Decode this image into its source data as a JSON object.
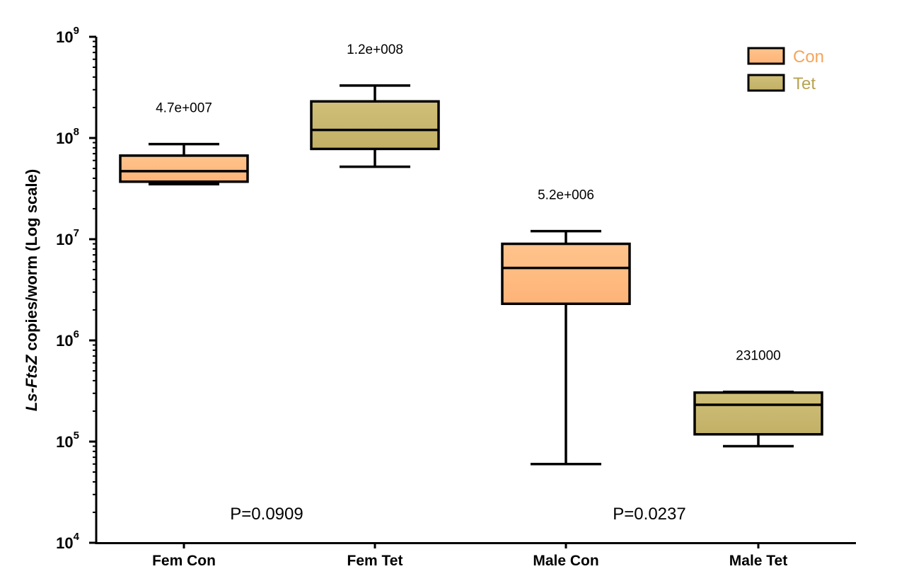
{
  "chart_data": {
    "type": "box",
    "ylabel_italic": "Ls-FtsZ",
    "ylabel_rest": " copies/worm (Log scale)",
    "yscale": "log",
    "ylim": [
      10000,
      1000000000
    ],
    "yticks": [
      {
        "value": 10000,
        "base": "10",
        "exp": "4"
      },
      {
        "value": 100000,
        "base": "10",
        "exp": "5"
      },
      {
        "value": 1000000,
        "base": "10",
        "exp": "6"
      },
      {
        "value": 10000000,
        "base": "10",
        "exp": "7"
      },
      {
        "value": 100000000,
        "base": "10",
        "exp": "8"
      },
      {
        "value": 1000000000,
        "base": "10",
        "exp": "9"
      }
    ],
    "categories": [
      "Fem Con",
      "Fem Tet",
      "Male Con",
      "Male Tet"
    ],
    "boxes": [
      {
        "category": "Fem Con",
        "group": "Con",
        "min": 35000000,
        "q1": 37000000,
        "median": 47000000,
        "q3": 67000000,
        "max": 87000000,
        "median_label": "4.7e+007"
      },
      {
        "category": "Fem Tet",
        "group": "Tet",
        "min": 52000000,
        "q1": 78000000,
        "median": 120000000,
        "q3": 230000000,
        "max": 330000000,
        "median_label": "1.2e+008"
      },
      {
        "category": "Male Con",
        "group": "Con",
        "min": 60000,
        "q1": 2300000,
        "median": 5200000,
        "q3": 9000000,
        "max": 12000000,
        "median_label": "5.2e+006"
      },
      {
        "category": "Male Tet",
        "group": "Tet",
        "min": 90000,
        "q1": 118000,
        "median": 231000,
        "q3": 305000,
        "max": 310000,
        "median_label": "231000"
      }
    ],
    "pvalues": [
      {
        "label": "P=0.0909",
        "between": [
          "Fem Con",
          "Fem Tet"
        ]
      },
      {
        "label": "P=0.0237",
        "between": [
          "Male Con",
          "Male Tet"
        ]
      }
    ],
    "legend": {
      "position": "top-right",
      "items": [
        {
          "name": "Con",
          "color": "#ffbf80",
          "text_color": "#f5a55a"
        },
        {
          "name": "Tet",
          "color": "#c9b86e",
          "text_color": "#b8a352"
        }
      ]
    },
    "grid": false
  }
}
